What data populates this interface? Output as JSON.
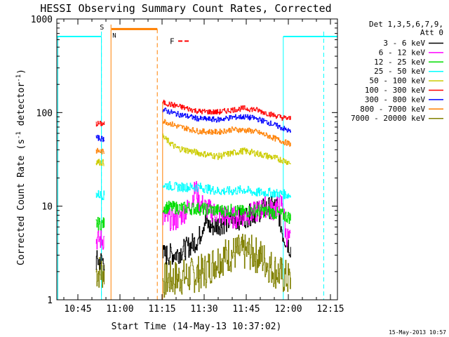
{
  "chart_data": {
    "type": "line",
    "title": "HESSI Observing Summary Count Rates, Corrected",
    "xlabel": "Start Time (14-May-13 10:37:02)",
    "ylabel_main": "Corrected Count Rate (s",
    "ylabel_exp1": "-1",
    "ylabel_mid": " detector",
    "ylabel_exp2": "-1",
    "ylabel_end": ")",
    "y_scale": "log",
    "ylim": [
      1,
      1000
    ],
    "xlim_minutes": [
      37.5,
      137.5
    ],
    "x_unit": "minutes after 10:00 UT",
    "x_ticks": [
      {
        "v": 45,
        "label": "10:45"
      },
      {
        "v": 60,
        "label": "11:00"
      },
      {
        "v": 75,
        "label": "11:15"
      },
      {
        "v": 90,
        "label": "11:30"
      },
      {
        "v": 105,
        "label": "11:45"
      },
      {
        "v": 120,
        "label": "12:00"
      },
      {
        "v": 135,
        "label": "12:15"
      }
    ],
    "y_ticks": [
      {
        "v": 1,
        "label": "1"
      },
      {
        "v": 10,
        "label": "10"
      },
      {
        "v": 100,
        "label": "100"
      },
      {
        "v": 1000,
        "label": "1000"
      }
    ],
    "legend": {
      "header1": "Det 1,3,5,6,7,9,",
      "header2": "Att 0",
      "placement": "right",
      "entries": [
        {
          "label": "3 - 6 keV",
          "color": "#000000"
        },
        {
          "label": "6 - 12 keV",
          "color": "#ff00ff"
        },
        {
          "label": "12 - 25 keV",
          "color": "#00dd00"
        },
        {
          "label": "25 - 50 keV",
          "color": "#00ffff"
        },
        {
          "label": "50 - 100 keV",
          "color": "#cccc00"
        },
        {
          "label": "100 - 300 keV",
          "color": "#ff0000"
        },
        {
          "label": "300 - 800 keV",
          "color": "#0000ff"
        },
        {
          "label": "800 - 7000 keV",
          "color": "#ff8000"
        },
        {
          "label": "7000 - 20000 keV",
          "color": "#808000"
        }
      ]
    },
    "night_level": 650,
    "night_intervals": [
      [
        37.6,
        53.4
      ],
      [
        118.2,
        137.4
      ]
    ],
    "dashed_cyan_x": [
      53.4,
      132.6
    ],
    "saa": {
      "label": "S",
      "x": 53.8,
      "level": 830
    },
    "saa_bar": {
      "label": "N",
      "start": 57.0,
      "end": 73.3,
      "level": 780
    },
    "saa_end_dashed_x": 73.3,
    "saa_start_x": 56.8,
    "flare": {
      "label": "F",
      "start": 80.0,
      "end": 84.5,
      "level": 580
    },
    "segments": [
      [
        51.4,
        54.4
      ],
      [
        75.2,
        120.8
      ]
    ],
    "series": [
      {
        "name": "100 - 300 keV",
        "color": "#ff0000",
        "base": [
          [
            51.4,
            76
          ],
          [
            54.4,
            76
          ],
          [
            75.2,
            128
          ],
          [
            80,
            118
          ],
          [
            88,
            103
          ],
          [
            95,
            101
          ],
          [
            100,
            107
          ],
          [
            104,
            111
          ],
          [
            108,
            108
          ],
          [
            113,
            97
          ],
          [
            118,
            88
          ],
          [
            120.8,
            86
          ]
        ],
        "jitter": 0.03
      },
      {
        "name": "300 - 800 keV",
        "color": "#0000ff",
        "base": [
          [
            51.4,
            54
          ],
          [
            54.4,
            52
          ],
          [
            75.2,
            107
          ],
          [
            80,
            97
          ],
          [
            88,
            86
          ],
          [
            95,
            84
          ],
          [
            100,
            89
          ],
          [
            104,
            90
          ],
          [
            108,
            87
          ],
          [
            113,
            78
          ],
          [
            118,
            68
          ],
          [
            120.8,
            62
          ]
        ],
        "jitter": 0.03
      },
      {
        "name": "800 - 7000 keV",
        "color": "#ff8000",
        "base": [
          [
            51.4,
            39
          ],
          [
            54.4,
            38
          ],
          [
            75.2,
            82
          ],
          [
            80,
            72
          ],
          [
            88,
            63
          ],
          [
            95,
            62
          ],
          [
            100,
            66
          ],
          [
            104,
            65
          ],
          [
            108,
            63
          ],
          [
            113,
            56
          ],
          [
            118,
            49
          ],
          [
            120.8,
            46
          ]
        ],
        "jitter": 0.03
      },
      {
        "name": "50 - 100 keV",
        "color": "#cccc00",
        "base": [
          [
            51.4,
            30
          ],
          [
            54.4,
            29
          ],
          [
            75.2,
            55
          ],
          [
            80,
            42
          ],
          [
            88,
            37
          ],
          [
            95,
            34
          ],
          [
            100,
            37
          ],
          [
            104,
            39
          ],
          [
            108,
            37
          ],
          [
            113,
            34
          ],
          [
            118,
            31
          ],
          [
            120.8,
            29
          ]
        ],
        "jitter": 0.035
      },
      {
        "name": "25 - 50 keV",
        "color": "#00ffff",
        "base": [
          [
            51.4,
            13.5
          ],
          [
            54.4,
            13
          ],
          [
            75.2,
            17
          ],
          [
            80,
            16
          ],
          [
            88,
            16
          ],
          [
            95,
            14.5
          ],
          [
            100,
            14.5
          ],
          [
            104,
            15
          ],
          [
            108,
            14
          ],
          [
            113,
            14
          ],
          [
            118,
            13.5
          ],
          [
            120.8,
            13
          ]
        ],
        "jitter": 0.05
      },
      {
        "name": "12 - 25 keV",
        "color": "#00dd00",
        "base": [
          [
            51.4,
            6.5
          ],
          [
            54.4,
            6.5
          ],
          [
            75.2,
            9.8
          ],
          [
            80,
            9.6
          ],
          [
            88,
            9.4
          ],
          [
            95,
            9
          ],
          [
            100,
            9
          ],
          [
            104,
            8.7
          ],
          [
            108,
            9
          ],
          [
            113,
            8.8
          ],
          [
            118,
            8
          ],
          [
            120.8,
            7.5
          ]
        ],
        "jitter": 0.07
      },
      {
        "name": "6 - 12 keV",
        "color": "#ff00ff",
        "base": [
          [
            51.4,
            4.4
          ],
          [
            54.4,
            4.4
          ],
          [
            75.2,
            7.5
          ],
          [
            80,
            7
          ],
          [
            85,
            10
          ],
          [
            87,
            16
          ],
          [
            88,
            11
          ],
          [
            92,
            9
          ],
          [
            96,
            8
          ],
          [
            100,
            7.5
          ],
          [
            104,
            8
          ],
          [
            108,
            8.5
          ],
          [
            112,
            10
          ],
          [
            114,
            9
          ],
          [
            116,
            10
          ],
          [
            118,
            11
          ],
          [
            119,
            5
          ],
          [
            120.8,
            4.2
          ]
        ],
        "jitter": 0.12
      },
      {
        "name": "3 - 6 keV",
        "color": "#000000",
        "base": [
          [
            51.4,
            2.6
          ],
          [
            54.4,
            2.6
          ],
          [
            75.2,
            3.0
          ],
          [
            80,
            3.1
          ],
          [
            84,
            3.6
          ],
          [
            88,
            4.5
          ],
          [
            90,
            7
          ],
          [
            92,
            6
          ],
          [
            96,
            6.5
          ],
          [
            100,
            7
          ],
          [
            104,
            7.5
          ],
          [
            108,
            8.5
          ],
          [
            112,
            9.5
          ],
          [
            116,
            10
          ],
          [
            118,
            5
          ],
          [
            120.8,
            3.5
          ]
        ],
        "jitter": 0.12
      },
      {
        "name": "7000 - 20000 keV",
        "color": "#808000",
        "base": [
          [
            51.4,
            2.0
          ],
          [
            54.4,
            2.0
          ],
          [
            75.2,
            1.6
          ],
          [
            80,
            1.7
          ],
          [
            85,
            1.8
          ],
          [
            90,
            2.0
          ],
          [
            94,
            2.6
          ],
          [
            98,
            3.0
          ],
          [
            102,
            3.2
          ],
          [
            106,
            3.2
          ],
          [
            110,
            2.9
          ],
          [
            114,
            2.2
          ],
          [
            118,
            1.8
          ],
          [
            120.8,
            1.6
          ]
        ],
        "jitter": 0.2
      }
    ]
  },
  "footer_date": "15-May-2013 10:57"
}
